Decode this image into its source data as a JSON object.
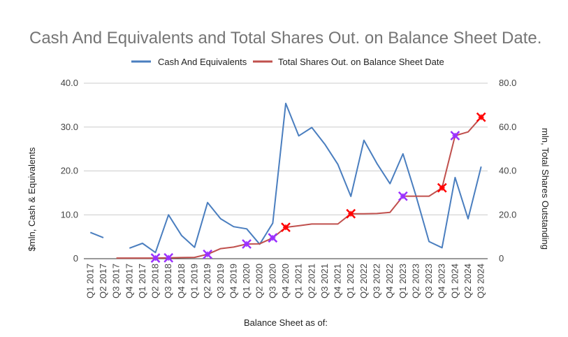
{
  "chart_data": {
    "type": "line",
    "title": "Cash And Equivalents and Total Shares Out. on Balance Sheet Date.",
    "xlabel": "Balance Sheet as of:",
    "ylabel": "$mln, Cash & Equivalents",
    "y2label": "mln, Total Shares Outstanding",
    "ylim": [
      0,
      40
    ],
    "y2lim": [
      0,
      80
    ],
    "yticks": [
      "0",
      "10.0",
      "20.0",
      "30.0",
      "40.0"
    ],
    "y2ticks": [
      "0",
      "20.0",
      "40.0",
      "60.0",
      "80.0"
    ],
    "legend_position": "top-center",
    "categories": [
      "Q1 2017",
      "Q2 2017",
      "Q3 2017",
      "Q4 2017",
      "Q1 2017",
      "Q2 2018",
      "Q3 2018",
      "Q4 2018",
      "Q1 2019",
      "Q2 2019",
      "Q3 2019",
      "Q4 2019",
      "Q1 2020",
      "Q2 2020",
      "Q3 2020",
      "Q4 2020",
      "Q1 2021",
      "Q2 2021",
      "Q3 2021",
      "Q4 2021",
      "Q1 2022",
      "Q2 2022",
      "Q3 2022",
      "Q4 2022",
      "Q1 2023",
      "Q2 2023",
      "Q3 2023",
      "Q4 2023",
      "Q1 2024",
      "Q2 2024",
      "Q3 2024"
    ],
    "series": [
      {
        "name": "Cash And Equivalents",
        "axis": "left",
        "color": "#4a7ebf",
        "values": [
          6.0,
          4.8,
          null,
          2.4,
          3.5,
          1.4,
          10.0,
          5.3,
          2.6,
          12.8,
          9.1,
          7.3,
          6.8,
          3.3,
          8.1,
          35.4,
          28.0,
          29.9,
          26.1,
          21.5,
          14.2,
          27.0,
          21.7,
          17.1,
          23.9,
          14.3,
          3.9,
          2.5,
          18.5,
          9.1,
          21.0
        ]
      },
      {
        "name": "Total Shares Out. on Balance Sheet Date",
        "axis": "right",
        "color": "#c0504d",
        "values": [
          null,
          null,
          0.3,
          0.3,
          0.3,
          0.3,
          0.4,
          0.5,
          0.6,
          2.0,
          4.6,
          5.3,
          6.7,
          6.8,
          9.5,
          14.3,
          15.0,
          15.8,
          15.8,
          15.8,
          20.5,
          20.5,
          20.6,
          21.1,
          28.5,
          28.5,
          28.5,
          32.3,
          56.1,
          57.8,
          64.5
        ]
      }
    ],
    "markers": [
      {
        "category": "Q2 2018",
        "series": "Total Shares Out. on Balance Sheet Date",
        "value": 0.3,
        "color": "#9b30ff"
      },
      {
        "category": "Q3 2018",
        "series": "Total Shares Out. on Balance Sheet Date",
        "value": 0.4,
        "color": "#9b30ff"
      },
      {
        "category": "Q2 2019",
        "series": "Total Shares Out. on Balance Sheet Date",
        "value": 2.0,
        "color": "#9b30ff"
      },
      {
        "category": "Q1 2020",
        "series": "Total Shares Out. on Balance Sheet Date",
        "value": 6.7,
        "color": "#9b30ff"
      },
      {
        "category": "Q3 2020",
        "series": "Total Shares Out. on Balance Sheet Date",
        "value": 9.5,
        "color": "#9b30ff"
      },
      {
        "category": "Q4 2020",
        "series": "Total Shares Out. on Balance Sheet Date",
        "value": 14.3,
        "color": "#ff0000"
      },
      {
        "category": "Q1 2022",
        "series": "Total Shares Out. on Balance Sheet Date",
        "value": 20.5,
        "color": "#ff0000"
      },
      {
        "category": "Q1 2023",
        "series": "Total Shares Out. on Balance Sheet Date",
        "value": 28.5,
        "color": "#9b30ff"
      },
      {
        "category": "Q4 2023",
        "series": "Total Shares Out. on Balance Sheet Date",
        "value": 32.3,
        "color": "#ff0000"
      },
      {
        "category": "Q1 2024",
        "series": "Total Shares Out. on Balance Sheet Date",
        "value": 56.1,
        "color": "#9b30ff"
      },
      {
        "category": "Q3 2024",
        "series": "Total Shares Out. on Balance Sheet Date",
        "value": 64.5,
        "color": "#ff0000"
      }
    ]
  }
}
